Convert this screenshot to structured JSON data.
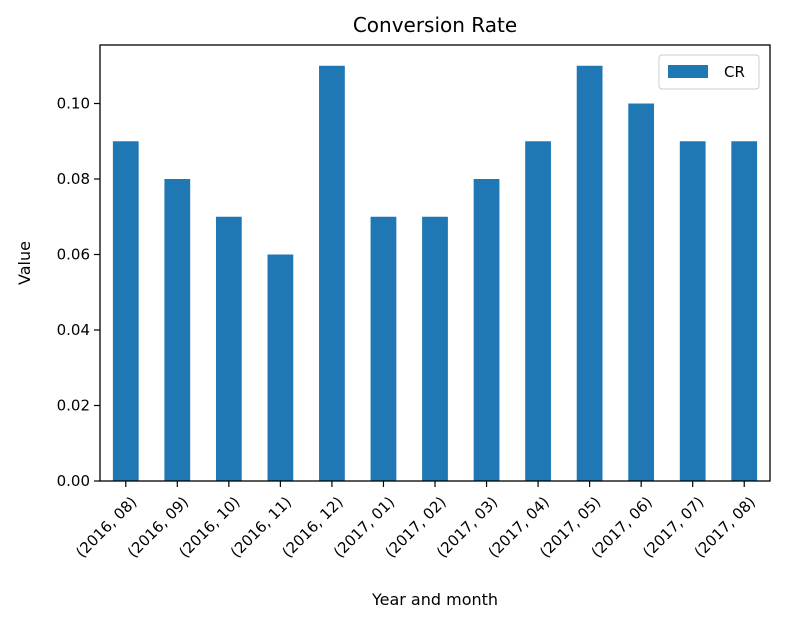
{
  "chart_data": {
    "type": "bar",
    "title": "Conversion Rate",
    "xlabel": "Year and month",
    "ylabel": "Value",
    "categories": [
      "(2016, 08)",
      "(2016, 09)",
      "(2016, 10)",
      "(2016, 11)",
      "(2016, 12)",
      "(2017, 01)",
      "(2017, 02)",
      "(2017, 03)",
      "(2017, 04)",
      "(2017, 05)",
      "(2017, 06)",
      "(2017, 07)",
      "(2017, 08)"
    ],
    "series": [
      {
        "name": "CR",
        "color": "#1f77b4",
        "values": [
          0.09,
          0.08,
          0.07,
          0.06,
          0.11,
          0.07,
          0.07,
          0.08,
          0.09,
          0.11,
          0.1,
          0.09,
          0.09
        ]
      }
    ],
    "ylim": [
      0,
      0.1155
    ],
    "yticks": [
      0.0,
      0.02,
      0.04,
      0.06,
      0.08,
      0.1
    ],
    "ytick_labels": [
      "0.00",
      "0.02",
      "0.04",
      "0.06",
      "0.08",
      "0.10"
    ],
    "grid": false,
    "legend_position": "top-right"
  }
}
